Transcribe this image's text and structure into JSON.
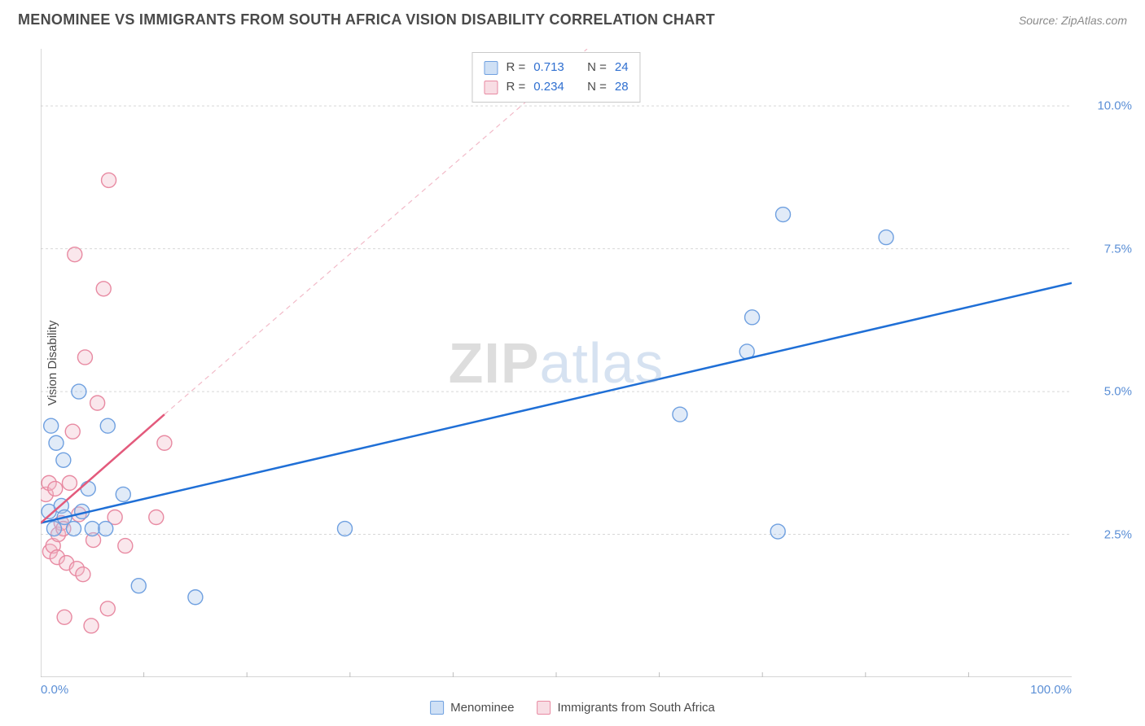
{
  "title": "MENOMINEE VS IMMIGRANTS FROM SOUTH AFRICA VISION DISABILITY CORRELATION CHART",
  "source": "Source: ZipAtlas.com",
  "ylabel": "Vision Disability",
  "watermark_zip": "ZIP",
  "watermark_atlas": "atlas",
  "chart": {
    "type": "scatter",
    "xlim": [
      0,
      100
    ],
    "ylim": [
      0,
      11
    ],
    "x_ticks": [
      {
        "value": 0,
        "label": "0.0%"
      },
      {
        "value": 100,
        "label": "100.0%"
      }
    ],
    "x_minor_ticks": [
      10,
      20,
      30,
      40,
      50,
      60,
      70,
      80,
      90
    ],
    "y_ticks": [
      {
        "value": 2.5,
        "label": "2.5%"
      },
      {
        "value": 5.0,
        "label": "5.0%"
      },
      {
        "value": 7.5,
        "label": "7.5%"
      },
      {
        "value": 10.0,
        "label": "10.0%"
      }
    ],
    "grid_color": "#d7d7d7",
    "axis_color": "#bdbdbd",
    "background": "#ffffff",
    "marker_radius": 9,
    "marker_stroke_width": 1.4,
    "marker_fill_opacity": 0.35,
    "series": [
      {
        "id": "menominee",
        "label": "Menominee",
        "color_stroke": "#6fa0e0",
        "color_fill": "#a9c6ec",
        "swatch_fill": "#cfe0f5",
        "swatch_border": "#6fa0e0",
        "r_stat": "0.713",
        "n_stat": "24",
        "reg_line": {
          "x1": 0,
          "y1": 2.7,
          "x2": 100,
          "y2": 6.9,
          "color": "#1f6fd6",
          "width": 2.5,
          "dash": ""
        },
        "points": [
          {
            "x": 1.0,
            "y": 4.4
          },
          {
            "x": 0.8,
            "y": 2.9
          },
          {
            "x": 1.3,
            "y": 2.6
          },
          {
            "x": 2.0,
            "y": 3.0
          },
          {
            "x": 2.3,
            "y": 2.8
          },
          {
            "x": 4.0,
            "y": 2.9
          },
          {
            "x": 3.2,
            "y": 2.6
          },
          {
            "x": 1.5,
            "y": 4.1
          },
          {
            "x": 6.5,
            "y": 4.4
          },
          {
            "x": 2.2,
            "y": 3.8
          },
          {
            "x": 4.6,
            "y": 3.3
          },
          {
            "x": 5.0,
            "y": 2.6
          },
          {
            "x": 6.3,
            "y": 2.6
          },
          {
            "x": 8.0,
            "y": 3.2
          },
          {
            "x": 9.5,
            "y": 1.6
          },
          {
            "x": 15.0,
            "y": 1.4
          },
          {
            "x": 29.5,
            "y": 2.6
          },
          {
            "x": 3.7,
            "y": 5.0
          },
          {
            "x": 62.0,
            "y": 4.6
          },
          {
            "x": 68.5,
            "y": 5.7
          },
          {
            "x": 71.5,
            "y": 2.55
          },
          {
            "x": 69.0,
            "y": 6.3
          },
          {
            "x": 72.0,
            "y": 8.1
          },
          {
            "x": 82.0,
            "y": 7.7
          }
        ]
      },
      {
        "id": "south_africa",
        "label": "Immigrants from South Africa",
        "color_stroke": "#e88aa2",
        "color_fill": "#f2bac8",
        "swatch_fill": "#f8dde4",
        "swatch_border": "#e88aa2",
        "r_stat": "0.234",
        "n_stat": "28",
        "reg_line": {
          "x1": 0,
          "y1": 2.7,
          "x2": 12,
          "y2": 4.6,
          "color": "#e35a7c",
          "width": 2.5,
          "dash": ""
        },
        "reg_line_ext": {
          "x1": 12,
          "y1": 4.6,
          "x2": 53,
          "y2": 11.0,
          "color": "#f2bac8",
          "width": 1.2,
          "dash": "6 5"
        },
        "points": [
          {
            "x": 0.5,
            "y": 3.2
          },
          {
            "x": 0.8,
            "y": 3.4
          },
          {
            "x": 0.9,
            "y": 2.2
          },
          {
            "x": 1.2,
            "y": 2.3
          },
          {
            "x": 1.4,
            "y": 3.3
          },
          {
            "x": 1.6,
            "y": 2.1
          },
          {
            "x": 1.7,
            "y": 2.5
          },
          {
            "x": 2.0,
            "y": 2.7
          },
          {
            "x": 2.2,
            "y": 2.6
          },
          {
            "x": 2.3,
            "y": 1.05
          },
          {
            "x": 2.5,
            "y": 2.0
          },
          {
            "x": 2.8,
            "y": 3.4
          },
          {
            "x": 3.1,
            "y": 4.3
          },
          {
            "x": 3.3,
            "y": 7.4
          },
          {
            "x": 3.5,
            "y": 1.9
          },
          {
            "x": 3.7,
            "y": 2.85
          },
          {
            "x": 4.1,
            "y": 1.8
          },
          {
            "x": 4.3,
            "y": 5.6
          },
          {
            "x": 4.9,
            "y": 0.9
          },
          {
            "x": 5.1,
            "y": 2.4
          },
          {
            "x": 5.5,
            "y": 4.8
          },
          {
            "x": 6.1,
            "y": 6.8
          },
          {
            "x": 6.5,
            "y": 1.2
          },
          {
            "x": 7.2,
            "y": 2.8
          },
          {
            "x": 8.2,
            "y": 2.3
          },
          {
            "x": 6.6,
            "y": 8.7
          },
          {
            "x": 11.2,
            "y": 2.8
          },
          {
            "x": 12.0,
            "y": 4.1
          }
        ]
      }
    ]
  },
  "stats_header": {
    "r_label": "R  =",
    "n_label": "N  ="
  }
}
